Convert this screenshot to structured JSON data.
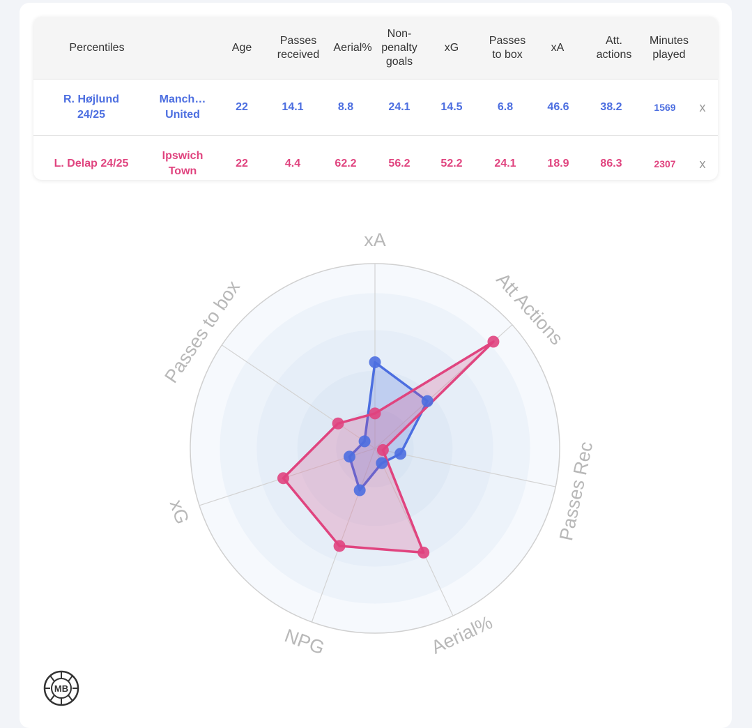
{
  "table": {
    "headers": [
      "Percentiles",
      "Age",
      "Passes\nreceived",
      "Aerial%",
      "Non-\npenalty\ngoals",
      "xG",
      "Passes\nto box",
      "xA",
      "Att.\nactions",
      "Minutes\nplayed"
    ],
    "rows": [
      {
        "player": "R. Højlund\n24/25",
        "team": "Manch…\nUnited",
        "age": "22",
        "passes_received": "14.1",
        "aerial": "8.8",
        "npg": "24.1",
        "xg": "14.5",
        "passes_to_box": "6.8",
        "xa": "46.6",
        "att_actions": "38.2",
        "minutes": "1569",
        "remove": "x",
        "color": "#4c6ee0"
      },
      {
        "player": "L. Delap 24/25",
        "team": "Ipswich\nTown",
        "age": "22",
        "passes_received": "4.4",
        "aerial": "62.2",
        "npg": "56.2",
        "xg": "52.2",
        "passes_to_box": "24.1",
        "xa": "18.9",
        "att_actions": "86.3",
        "minutes": "2307",
        "remove": "x",
        "color": "#e0447f"
      }
    ]
  },
  "chart_data": {
    "type": "radar",
    "axes": [
      "xA",
      "Att Actions",
      "Passes Rec",
      "Aerial%",
      "NPG",
      "xG",
      "Passes to box"
    ],
    "range": [
      0,
      100
    ],
    "grid": true,
    "series": [
      {
        "name": "R. Højlund 24/25",
        "color": "#4c6ee0",
        "values": [
          46.6,
          38.2,
          14.1,
          8.8,
          24.1,
          14.5,
          6.8
        ]
      },
      {
        "name": "L. Delap 24/25",
        "color": "#e0447f",
        "values": [
          18.9,
          86.3,
          4.4,
          62.2,
          56.2,
          52.2,
          24.1
        ]
      }
    ]
  },
  "logo": {
    "text": "MB"
  }
}
